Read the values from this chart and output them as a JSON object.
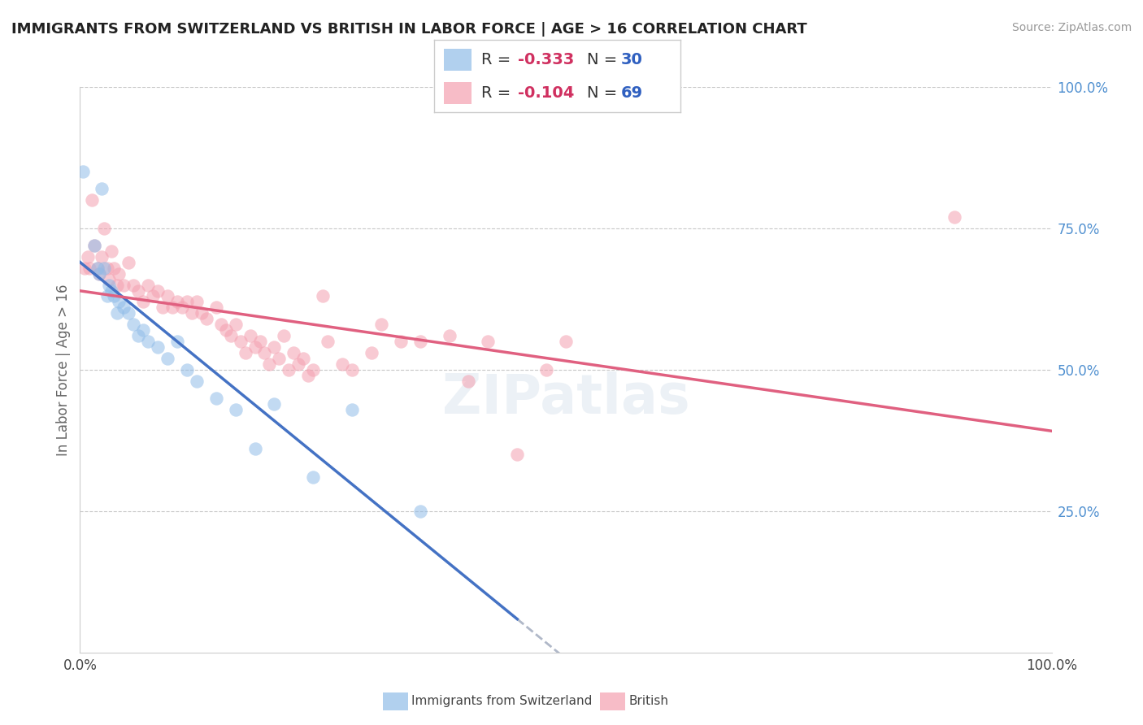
{
  "title": "IMMIGRANTS FROM SWITZERLAND VS BRITISH IN LABOR FORCE | AGE > 16 CORRELATION CHART",
  "source": "Source: ZipAtlas.com",
  "ylabel": "In Labor Force | Age > 16",
  "legend_swiss": {
    "R": -0.333,
    "N": 30
  },
  "legend_british": {
    "R": -0.104,
    "N": 69
  },
  "background_color": "#ffffff",
  "grid_color": "#c8c8c8",
  "swiss_color": "#90bce8",
  "british_color": "#f4a0b0",
  "trend_swiss_color": "#4472c4",
  "trend_british_color": "#e06080",
  "dashed_line_color": "#b0b8c8",
  "swiss_dots": [
    [
      0.3,
      85
    ],
    [
      1.5,
      72
    ],
    [
      1.8,
      68
    ],
    [
      2.0,
      67
    ],
    [
      2.2,
      82
    ],
    [
      2.5,
      68
    ],
    [
      2.8,
      63
    ],
    [
      3.0,
      65
    ],
    [
      3.2,
      64
    ],
    [
      3.5,
      63
    ],
    [
      3.8,
      60
    ],
    [
      4.0,
      62
    ],
    [
      4.5,
      61
    ],
    [
      5.0,
      60
    ],
    [
      5.5,
      58
    ],
    [
      6.0,
      56
    ],
    [
      6.5,
      57
    ],
    [
      7.0,
      55
    ],
    [
      8.0,
      54
    ],
    [
      9.0,
      52
    ],
    [
      10.0,
      55
    ],
    [
      11.0,
      50
    ],
    [
      12.0,
      48
    ],
    [
      14.0,
      45
    ],
    [
      16.0,
      43
    ],
    [
      18.0,
      36
    ],
    [
      20.0,
      44
    ],
    [
      24.0,
      31
    ],
    [
      28.0,
      43
    ],
    [
      35.0,
      25
    ]
  ],
  "british_dots": [
    [
      0.5,
      68
    ],
    [
      0.8,
      70
    ],
    [
      1.0,
      68
    ],
    [
      1.2,
      80
    ],
    [
      1.5,
      72
    ],
    [
      1.8,
      68
    ],
    [
      2.0,
      67
    ],
    [
      2.2,
      70
    ],
    [
      2.5,
      75
    ],
    [
      2.8,
      68
    ],
    [
      3.0,
      66
    ],
    [
      3.2,
      71
    ],
    [
      3.5,
      68
    ],
    [
      3.8,
      65
    ],
    [
      4.0,
      67
    ],
    [
      4.5,
      65
    ],
    [
      5.0,
      69
    ],
    [
      5.5,
      65
    ],
    [
      6.0,
      64
    ],
    [
      6.5,
      62
    ],
    [
      7.0,
      65
    ],
    [
      7.5,
      63
    ],
    [
      8.0,
      64
    ],
    [
      8.5,
      61
    ],
    [
      9.0,
      63
    ],
    [
      9.5,
      61
    ],
    [
      10.0,
      62
    ],
    [
      10.5,
      61
    ],
    [
      11.0,
      62
    ],
    [
      11.5,
      60
    ],
    [
      12.0,
      62
    ],
    [
      12.5,
      60
    ],
    [
      13.0,
      59
    ],
    [
      14.0,
      61
    ],
    [
      14.5,
      58
    ],
    [
      15.0,
      57
    ],
    [
      15.5,
      56
    ],
    [
      16.0,
      58
    ],
    [
      16.5,
      55
    ],
    [
      17.0,
      53
    ],
    [
      17.5,
      56
    ],
    [
      18.0,
      54
    ],
    [
      18.5,
      55
    ],
    [
      19.0,
      53
    ],
    [
      19.5,
      51
    ],
    [
      20.0,
      54
    ],
    [
      20.5,
      52
    ],
    [
      21.0,
      56
    ],
    [
      21.5,
      50
    ],
    [
      22.0,
      53
    ],
    [
      22.5,
      51
    ],
    [
      23.0,
      52
    ],
    [
      23.5,
      49
    ],
    [
      24.0,
      50
    ],
    [
      25.0,
      63
    ],
    [
      25.5,
      55
    ],
    [
      27.0,
      51
    ],
    [
      28.0,
      50
    ],
    [
      30.0,
      53
    ],
    [
      31.0,
      58
    ],
    [
      33.0,
      55
    ],
    [
      35.0,
      55
    ],
    [
      38.0,
      56
    ],
    [
      40.0,
      48
    ],
    [
      42.0,
      55
    ],
    [
      45.0,
      35
    ],
    [
      48.0,
      50
    ],
    [
      50.0,
      55
    ],
    [
      90.0,
      77
    ]
  ],
  "xlim": [
    0,
    100
  ],
  "ylim": [
    0,
    100
  ],
  "x_ticks": [
    0,
    100
  ],
  "x_tick_labels": [
    "0.0%",
    "100.0%"
  ],
  "y_ticks_right": [
    25,
    50,
    75,
    100
  ],
  "y_tick_labels_right": [
    "25.0%",
    "50.0%",
    "75.0%",
    "100.0%"
  ],
  "swiss_trend_x_end": 45,
  "dashed_start_x": 45,
  "figsize": [
    14.06,
    8.92
  ],
  "dpi": 100
}
